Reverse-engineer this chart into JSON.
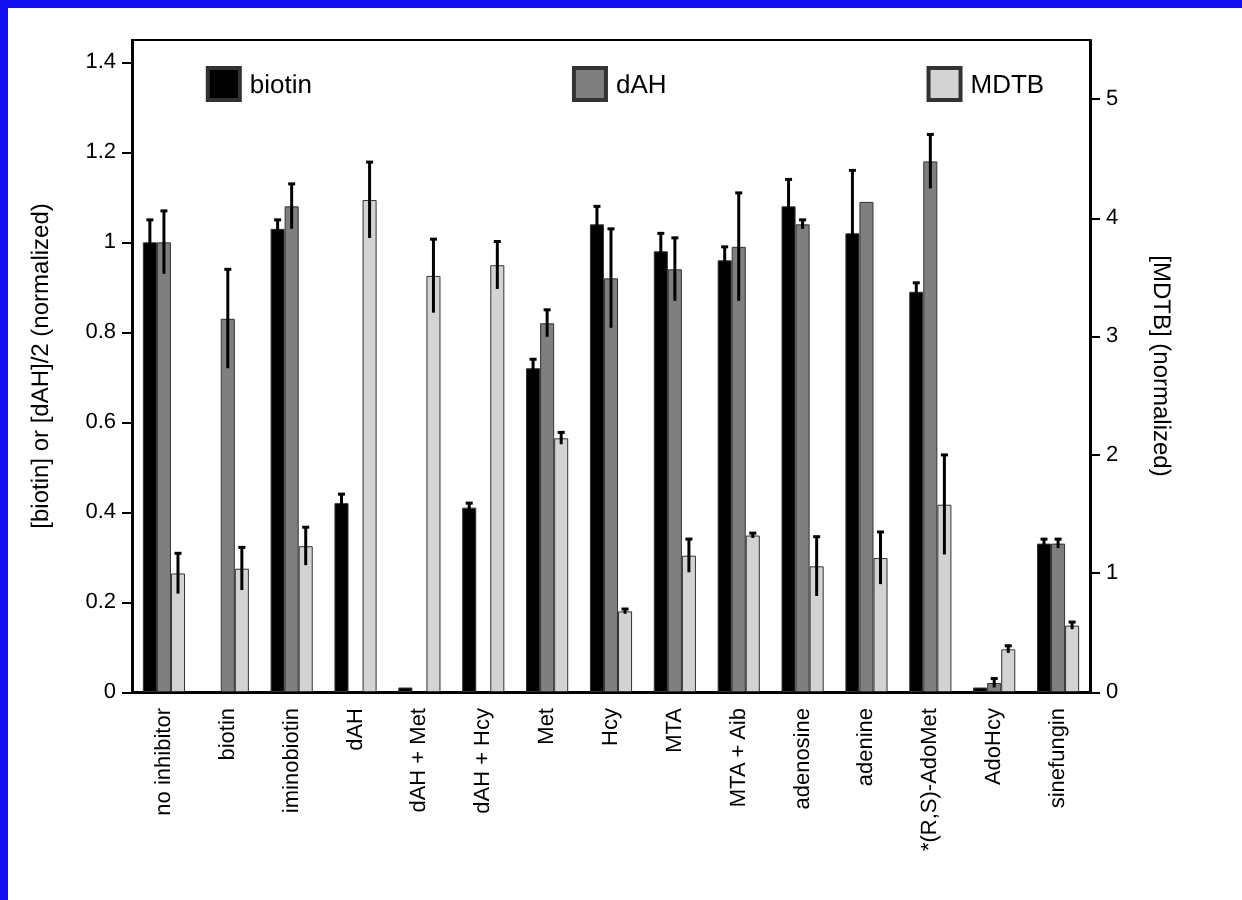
{
  "chart_data": {
    "type": "bar",
    "ylabel": "[biotin] or [dAH]/2 (normalized)",
    "y2label": "[MDTB] (normalized)",
    "categories": [
      "no inhibitor",
      "biotin",
      "iminobiotin",
      "dAH",
      "dAH + Met",
      "dAH + Hcy",
      "Met",
      "Hcy",
      "MTA",
      "MTA + Aib",
      "adenosine",
      "adenine",
      "*(R,S)-AdoMet",
      "AdoHcy",
      "sinefungin"
    ],
    "series": [
      {
        "name": "biotin",
        "color": "#000000",
        "values": [
          1.0,
          null,
          1.03,
          0.42,
          0.01,
          0.41,
          0.72,
          1.04,
          0.98,
          0.96,
          1.08,
          1.02,
          0.89,
          0.01,
          0.33
        ],
        "errors": [
          0.05,
          null,
          0.02,
          0.02,
          null,
          0.01,
          0.02,
          0.04,
          0.04,
          0.03,
          0.06,
          0.14,
          0.02,
          null,
          0.01
        ]
      },
      {
        "name": "dAH",
        "color": "#7f7f7f",
        "values": [
          1.0,
          0.83,
          1.08,
          null,
          null,
          null,
          0.82,
          0.92,
          0.94,
          0.99,
          1.04,
          1.09,
          1.18,
          0.02,
          0.33
        ],
        "errors": [
          0.07,
          0.11,
          0.05,
          null,
          null,
          null,
          0.03,
          0.11,
          0.07,
          0.12,
          0.01,
          null,
          0.06,
          0.01,
          0.01
        ]
      },
      {
        "name": "MDTB",
        "color": "#d3d3d3",
        "axis": "y2",
        "values": [
          1.0,
          1.04,
          1.23,
          4.15,
          3.51,
          3.6,
          2.14,
          0.68,
          1.15,
          1.32,
          1.06,
          1.13,
          1.58,
          0.36,
          0.56
        ],
        "errors": [
          0.17,
          0.18,
          0.16,
          0.32,
          0.31,
          0.2,
          0.05,
          0.02,
          0.14,
          0.02,
          0.25,
          0.22,
          0.42,
          0.03,
          0.03
        ]
      }
    ],
    "ylim": [
      0,
      1.45
    ],
    "yticks": [
      0,
      0.2,
      0.4,
      0.6,
      0.8,
      1,
      1.2,
      1.4
    ],
    "y2lim": [
      0,
      5.5
    ],
    "y2ticks": [
      0,
      1,
      2,
      3,
      4,
      5
    ],
    "legend": "top",
    "grid": false
  }
}
